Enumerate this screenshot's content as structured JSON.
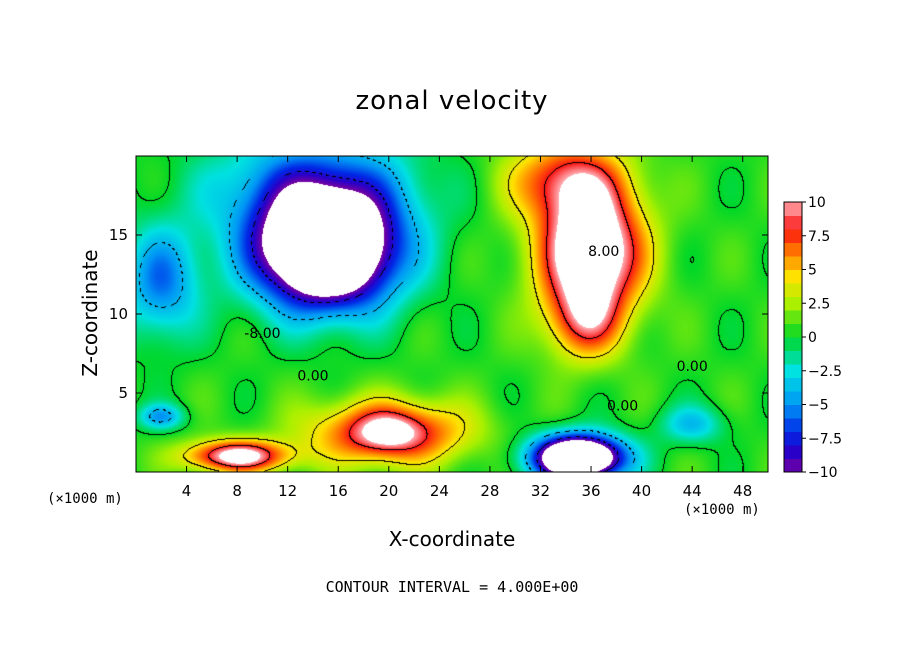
{
  "chart_data": {
    "type": "heatmap",
    "title": "zonal velocity",
    "xlabel": "X-coordinate",
    "ylabel": "Z-coordinate",
    "x_unit": "(×1000 m)",
    "footer": "CONTOUR INTERVAL = 4.000E+00",
    "xlim": [
      0,
      50
    ],
    "ylim": [
      0,
      20
    ],
    "xticks": [
      4,
      8,
      12,
      16,
      20,
      24,
      28,
      32,
      36,
      40,
      44,
      48
    ],
    "yticks": [
      5,
      10,
      15
    ],
    "colorbar": {
      "range": [
        -10,
        10
      ],
      "ticks": [
        "10",
        "7.5",
        "5",
        "2.5",
        "0",
        "−2.5",
        "−5",
        "−7.5",
        "−10"
      ]
    },
    "contour_labels": [
      {
        "text": "-8.00",
        "x": 10.0,
        "y": 8.8
      },
      {
        "text": "0.00",
        "x": 14.0,
        "y": 6.1
      },
      {
        "text": "8.00",
        "x": 37.0,
        "y": 14.0
      },
      {
        "text": "0.00",
        "x": 44.0,
        "y": 6.7
      },
      {
        "text": "0.00",
        "x": 38.5,
        "y": 4.2
      }
    ],
    "features": [
      {
        "kind": "min",
        "x": 15.0,
        "y": 14.0,
        "sx": 5.5,
        "sy": 3.6,
        "a": -20
      },
      {
        "kind": "min",
        "x": 35.0,
        "y": 0.9,
        "sx": 3.5,
        "sy": 1.4,
        "a": -20
      },
      {
        "kind": "min",
        "x": 14.0,
        "y": 18.0,
        "sx": 8.0,
        "sy": 3.5,
        "a": -6
      },
      {
        "kind": "min",
        "x": 2.0,
        "y": 12.0,
        "sx": 3.0,
        "sy": 3.5,
        "a": -6
      },
      {
        "kind": "min",
        "x": 44.0,
        "y": 3.0,
        "sx": 2.5,
        "sy": 1.2,
        "a": -4
      },
      {
        "kind": "min",
        "x": 2.0,
        "y": 3.5,
        "sx": 1.8,
        "sy": 0.8,
        "a": -5
      },
      {
        "kind": "max",
        "x": 36.0,
        "y": 14.0,
        "sx": 4.0,
        "sy": 4.0,
        "a": 14
      },
      {
        "kind": "max",
        "x": 34.0,
        "y": 18.5,
        "sx": 4.5,
        "sy": 2.5,
        "a": 7
      },
      {
        "kind": "max",
        "x": 35.5,
        "y": 9.5,
        "sx": 3.0,
        "sy": 2.5,
        "a": 6
      },
      {
        "kind": "max",
        "x": 20.0,
        "y": 2.5,
        "sx": 6.0,
        "sy": 2.0,
        "a": 9
      },
      {
        "kind": "max",
        "x": 8.0,
        "y": 1.0,
        "sx": 4.0,
        "sy": 1.0,
        "a": 11
      },
      {
        "kind": "max",
        "x": 20.0,
        "y": 2.5,
        "sx": 2.5,
        "sy": 1.2,
        "a": 3
      }
    ]
  }
}
